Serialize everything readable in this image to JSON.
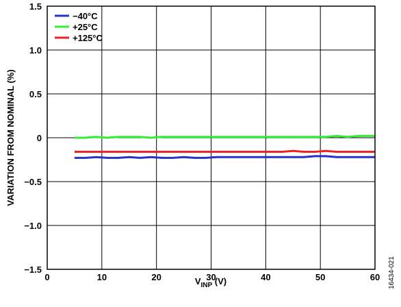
{
  "chart_data": {
    "type": "line",
    "title": "",
    "xlabel": "V",
    "xlabel_sub": "INP",
    "xlabel_unit": " (V)",
    "ylabel": "VARIATION FROM NOMINAL (%)",
    "xlim": [
      0,
      60
    ],
    "ylim": [
      -1.5,
      1.5
    ],
    "xticks": [
      0,
      10,
      20,
      30,
      40,
      50,
      60
    ],
    "yticks": [
      1.5,
      1.0,
      0.5,
      0,
      -0.5,
      -1.0,
      -1.5
    ],
    "xtick_labels": [
      "0",
      "10",
      "20",
      "30",
      "40",
      "50",
      "60"
    ],
    "ytick_labels": [
      "1.5",
      "1.0",
      "0.5",
      "0",
      "−0.5",
      "−1.0",
      "−1.5"
    ],
    "grid": true,
    "legend_position": "top-left",
    "series": [
      {
        "name": "−40°C",
        "color": "#2233cc",
        "x": [
          5,
          7,
          9,
          11,
          13,
          15,
          17,
          19,
          21,
          23,
          25,
          27,
          29,
          31,
          33,
          35,
          37,
          39,
          41,
          43,
          45,
          47,
          49,
          51,
          53,
          55,
          57,
          59,
          60
        ],
        "y": [
          -0.23,
          -0.23,
          -0.22,
          -0.23,
          -0.23,
          -0.22,
          -0.23,
          -0.22,
          -0.23,
          -0.23,
          -0.22,
          -0.23,
          -0.23,
          -0.22,
          -0.22,
          -0.22,
          -0.22,
          -0.22,
          -0.22,
          -0.22,
          -0.22,
          -0.22,
          -0.21,
          -0.21,
          -0.22,
          -0.22,
          -0.22,
          -0.22,
          -0.22
        ]
      },
      {
        "name": "+25°C",
        "color": "#33ee33",
        "x": [
          5,
          7,
          9,
          11,
          13,
          15,
          17,
          19,
          21,
          23,
          25,
          27,
          29,
          31,
          33,
          35,
          37,
          39,
          41,
          43,
          45,
          47,
          49,
          51,
          53,
          55,
          57,
          59,
          60
        ],
        "y": [
          0.0,
          0.0,
          0.01,
          0.0,
          0.01,
          0.01,
          0.01,
          0.0,
          0.01,
          0.01,
          0.01,
          0.01,
          0.01,
          0.01,
          0.01,
          0.01,
          0.01,
          0.01,
          0.01,
          0.01,
          0.01,
          0.01,
          0.01,
          0.01,
          0.02,
          0.01,
          0.02,
          0.02,
          0.02
        ]
      },
      {
        "name": "+125°C",
        "color": "#ee2222",
        "x": [
          5,
          7,
          9,
          11,
          13,
          15,
          17,
          19,
          21,
          23,
          25,
          27,
          29,
          31,
          33,
          35,
          37,
          39,
          41,
          43,
          45,
          47,
          49,
          51,
          53,
          55,
          57,
          59,
          60
        ],
        "y": [
          -0.16,
          -0.16,
          -0.16,
          -0.16,
          -0.16,
          -0.16,
          -0.16,
          -0.16,
          -0.16,
          -0.16,
          -0.16,
          -0.16,
          -0.16,
          -0.16,
          -0.16,
          -0.16,
          -0.16,
          -0.16,
          -0.16,
          -0.16,
          -0.15,
          -0.16,
          -0.16,
          -0.15,
          -0.16,
          -0.16,
          -0.16,
          -0.16,
          -0.16
        ]
      }
    ]
  },
  "figure_id": "16434-021"
}
